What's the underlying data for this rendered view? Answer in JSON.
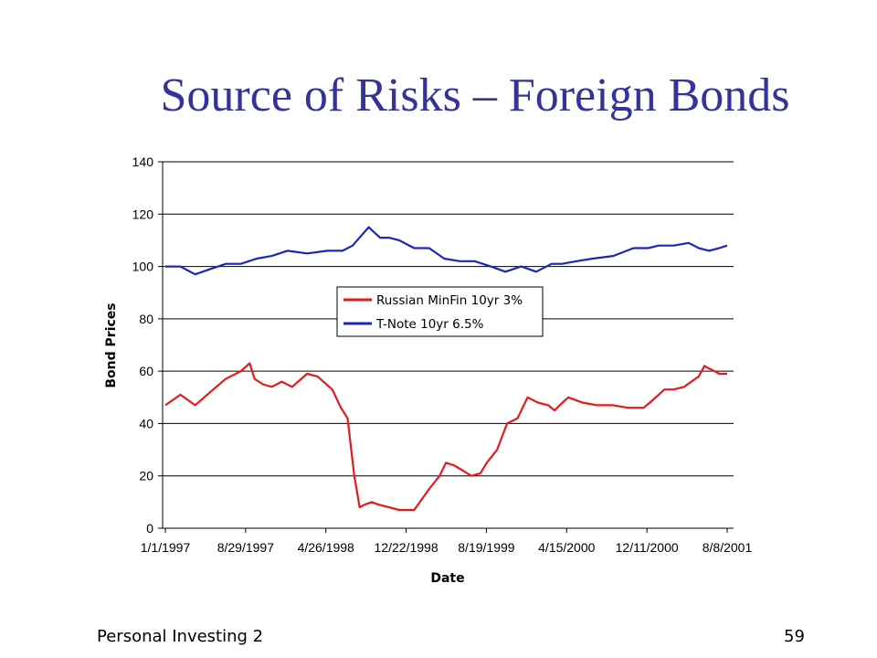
{
  "slide": {
    "title": "Source of Risks – Foreign Bonds",
    "footer_left": "Personal Investing 2",
    "page_number": "59"
  },
  "colors": {
    "title": "#333399",
    "russian": "#e41a1c",
    "tnote": "#1f25b8"
  },
  "chart_data": {
    "type": "line",
    "title": "",
    "xlabel": "Date",
    "ylabel": "Bond Prices",
    "ylim": [
      0,
      140
    ],
    "yticks": [
      0,
      20,
      40,
      60,
      80,
      100,
      120,
      140
    ],
    "xlim": [
      "1/1/1997",
      "8/8/2001"
    ],
    "xticks": [
      "1/1/1997",
      "8/29/1997",
      "4/26/1998",
      "12/22/1998",
      "8/19/1999",
      "4/15/2000",
      "12/11/2000",
      "8/8/2001"
    ],
    "grid": "horizontal",
    "legend_position": "center",
    "series": [
      {
        "name": "Russian MinFin 10yr 3%",
        "color": "#e41a1c",
        "x": [
          "1/1/1997",
          "2/15/1997",
          "3/31/1997",
          "5/15/1997",
          "6/30/1997",
          "8/15/1997",
          "9/10/1997",
          "9/25/1997",
          "10/20/1997",
          "11/15/1997",
          "12/15/1997",
          "1/15/1998",
          "3/1/1998",
          "4/1/1998",
          "5/15/1998",
          "6/10/1998",
          "6/30/1998",
          "7/20/1998",
          "8/5/1998",
          "8/20/1998",
          "9/10/1998",
          "10/1/1998",
          "11/1/1998",
          "12/1/1998",
          "1/15/1999",
          "3/1/1999",
          "4/1/1999",
          "4/20/1999",
          "5/15/1999",
          "6/10/1999",
          "7/5/1999",
          "8/1/1999",
          "8/20/1999",
          "9/20/1999",
          "10/20/1999",
          "11/20/1999",
          "12/20/1999",
          "1/20/2000",
          "2/20/2000",
          "3/10/2000",
          "3/25/2000",
          "4/20/2000",
          "6/1/2000",
          "7/15/2000",
          "9/1/2000",
          "10/15/2000",
          "12/1/2000",
          "12/20/2000",
          "1/15/2001",
          "2/1/2001",
          "3/1/2001",
          "4/1/2001",
          "5/15/2001",
          "6/1/2001",
          "6/15/2001",
          "7/1/2001",
          "7/15/2001",
          "8/8/2001"
        ],
        "values": [
          47,
          51,
          47,
          52,
          57,
          60,
          63,
          57,
          55,
          54,
          56,
          54,
          59,
          58,
          53,
          46,
          42,
          20,
          8,
          9,
          10,
          9,
          8,
          7,
          7,
          15,
          20,
          25,
          24,
          22,
          20,
          21,
          25,
          30,
          40,
          42,
          50,
          48,
          47,
          45,
          47,
          50,
          48,
          47,
          47,
          46,
          46,
          48,
          51,
          53,
          53,
          54,
          58,
          62,
          61,
          60,
          59,
          59
        ]
      },
      {
        "name": "T-Note 10yr 6.5%",
        "color": "#1f25b8",
        "x": [
          "1/1/1997",
          "2/15/1997",
          "3/31/1997",
          "5/15/1997",
          "7/1/1997",
          "8/15/1997",
          "10/1/1997",
          "11/15/1997",
          "1/1/1998",
          "3/1/1998",
          "5/1/1998",
          "6/15/1998",
          "7/15/1998",
          "9/1/1998",
          "10/5/1998",
          "11/1/1998",
          "12/1/1998",
          "1/15/1999",
          "3/1/1999",
          "4/15/1999",
          "6/1/1999",
          "7/15/1999",
          "9/1/1999",
          "10/15/1999",
          "12/1/1999",
          "1/15/2000",
          "3/1/2000",
          "4/1/2000",
          "5/15/2000",
          "7/1/2000",
          "9/1/2000",
          "11/1/2000",
          "12/15/2000",
          "1/15/2001",
          "3/1/2001",
          "4/15/2001",
          "5/15/2001",
          "6/15/2001",
          "7/15/2001",
          "8/8/2001"
        ],
        "values": [
          100,
          100,
          97,
          99,
          101,
          101,
          103,
          104,
          106,
          105,
          106,
          106,
          108,
          115,
          111,
          111,
          110,
          107,
          107,
          103,
          102,
          102,
          100,
          98,
          100,
          98,
          101,
          101,
          102,
          103,
          104,
          107,
          107,
          108,
          108,
          109,
          107,
          106,
          107,
          108
        ]
      }
    ]
  }
}
